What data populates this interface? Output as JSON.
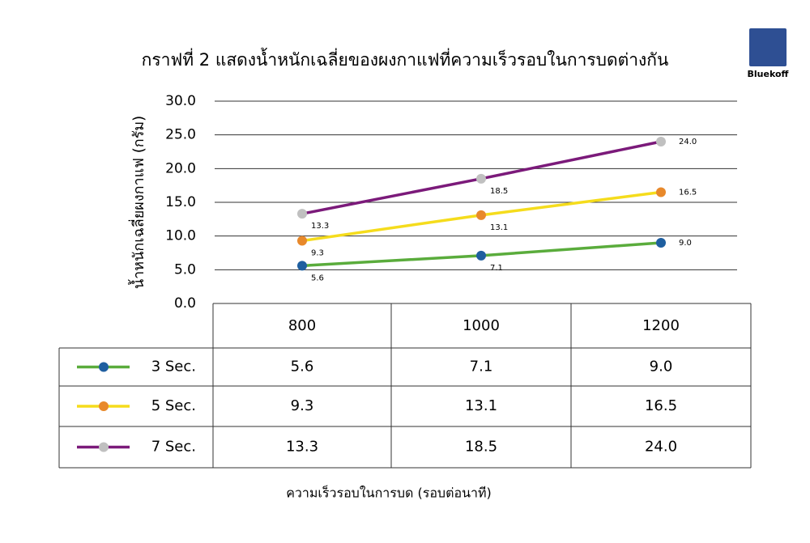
{
  "logo": "Bluekoff",
  "chart_data": {
    "type": "line",
    "title": "กราฟที่ 2 แสดงน้ำหนักเฉลี่ยของผงกาแฟที่ความเร็วรอบในการบดต่างกัน",
    "y_label": "น้ำหนักเฉลี่ยผงกาแฟ (กรัม)",
    "x_label": "ความเร็วรอบในการบด (รอบต่อนาที)",
    "categories": [
      "800",
      "1000",
      "1200"
    ],
    "ylim": [
      0,
      30
    ],
    "yticks": [
      {
        "value": 0,
        "label": "0.0"
      },
      {
        "value": 5,
        "label": "5.0"
      },
      {
        "value": 10,
        "label": "10.0"
      },
      {
        "value": 15,
        "label": "15.0"
      },
      {
        "value": 20,
        "label": "20.0"
      },
      {
        "value": 25,
        "label": "25.0"
      },
      {
        "value": 30,
        "label": "30.0"
      }
    ],
    "grid": true,
    "series": [
      {
        "name": "3 Sec.",
        "color": "#5aac3c",
        "marker_color": "#1f5fa0",
        "values": [
          5.6,
          7.1,
          9
        ],
        "value_labels": [
          "5.6",
          "7.1",
          "9.0"
        ]
      },
      {
        "name": "5 Sec.",
        "color": "#f5dc1c",
        "marker_color": "#e8892b",
        "values": [
          9.3,
          13.1,
          16.5
        ],
        "value_labels": [
          "9.3",
          "13.1",
          "16.5"
        ]
      },
      {
        "name": "7 Sec.",
        "color": "#7b1a7a",
        "marker_color": "#c0c0c0",
        "values": [
          13.3,
          18.5,
          24
        ],
        "value_labels": [
          "13.3",
          "18.5",
          "24.0"
        ]
      }
    ]
  }
}
